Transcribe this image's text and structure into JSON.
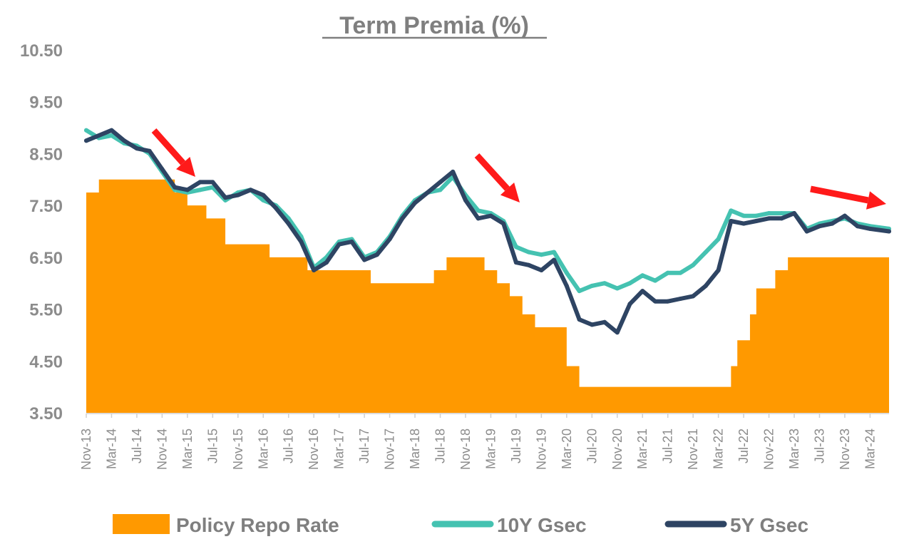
{
  "chart_data": {
    "type": "area+line",
    "title": "Term Premia (%)",
    "xlabel": "",
    "ylabel": "",
    "ylim": [
      3.5,
      10.5
    ],
    "y_ticks": [
      "3.50",
      "4.50",
      "5.50",
      "6.50",
      "7.50",
      "8.50",
      "9.50",
      "10.50"
    ],
    "x_range": [
      "2013-11",
      "2024-06"
    ],
    "x_ticks": [
      "Nov-13",
      "Mar-14",
      "Jul-14",
      "Nov-14",
      "Mar-15",
      "Jul-15",
      "Nov-15",
      "Mar-16",
      "Jul-16",
      "Nov-16",
      "Mar-17",
      "Jul-17",
      "Nov-17",
      "Mar-18",
      "Jul-18",
      "Nov-18",
      "Mar-19",
      "Jul-19",
      "Nov-19",
      "Mar-20",
      "Jul-20",
      "Nov-20",
      "Mar-21",
      "Jul-21",
      "Nov-21",
      "Mar-22",
      "Jul-22",
      "Nov-22",
      "Mar-23",
      "Jul-23",
      "Nov-23",
      "Mar-24"
    ],
    "grid": false,
    "legend_position": "bottom",
    "colors": {
      "repo": "#ff9900",
      "gsec10": "#45c2b1",
      "gsec5": "#2e4463",
      "arrow": "#ff1a1a",
      "text": "#8c8c8c"
    },
    "series": [
      {
        "name": "Policy Repo Rate",
        "kind": "step-area",
        "points": [
          [
            "2013-11",
            7.75
          ],
          [
            "2014-01",
            8.0
          ],
          [
            "2015-01",
            7.75
          ],
          [
            "2015-03",
            7.5
          ],
          [
            "2015-06",
            7.25
          ],
          [
            "2015-09",
            6.75
          ],
          [
            "2016-04",
            6.5
          ],
          [
            "2016-10",
            6.25
          ],
          [
            "2017-08",
            6.0
          ],
          [
            "2018-06",
            6.25
          ],
          [
            "2018-08",
            6.5
          ],
          [
            "2019-02",
            6.25
          ],
          [
            "2019-04",
            6.0
          ],
          [
            "2019-06",
            5.75
          ],
          [
            "2019-08",
            5.4
          ],
          [
            "2019-10",
            5.15
          ],
          [
            "2020-03",
            4.4
          ],
          [
            "2020-05",
            4.0
          ],
          [
            "2022-05",
            4.4
          ],
          [
            "2022-06",
            4.9
          ],
          [
            "2022-08",
            5.4
          ],
          [
            "2022-09",
            5.9
          ],
          [
            "2022-12",
            6.25
          ],
          [
            "2023-02",
            6.5
          ],
          [
            "2024-06",
            6.5
          ]
        ]
      },
      {
        "name": "10Y Gsec",
        "kind": "line",
        "points": [
          [
            "2013-11",
            8.95
          ],
          [
            "2014-01",
            8.8
          ],
          [
            "2014-03",
            8.85
          ],
          [
            "2014-05",
            8.7
          ],
          [
            "2014-07",
            8.65
          ],
          [
            "2014-09",
            8.5
          ],
          [
            "2014-11",
            8.15
          ],
          [
            "2015-01",
            7.8
          ],
          [
            "2015-03",
            7.75
          ],
          [
            "2015-05",
            7.8
          ],
          [
            "2015-07",
            7.85
          ],
          [
            "2015-09",
            7.6
          ],
          [
            "2015-11",
            7.75
          ],
          [
            "2016-01",
            7.8
          ],
          [
            "2016-03",
            7.6
          ],
          [
            "2016-05",
            7.5
          ],
          [
            "2016-07",
            7.25
          ],
          [
            "2016-09",
            6.9
          ],
          [
            "2016-11",
            6.3
          ],
          [
            "2017-01",
            6.5
          ],
          [
            "2017-03",
            6.8
          ],
          [
            "2017-05",
            6.85
          ],
          [
            "2017-07",
            6.5
          ],
          [
            "2017-09",
            6.6
          ],
          [
            "2017-11",
            6.9
          ],
          [
            "2018-01",
            7.3
          ],
          [
            "2018-03",
            7.6
          ],
          [
            "2018-05",
            7.75
          ],
          [
            "2018-07",
            7.8
          ],
          [
            "2018-09",
            8.05
          ],
          [
            "2018-11",
            7.7
          ],
          [
            "2019-01",
            7.4
          ],
          [
            "2019-03",
            7.35
          ],
          [
            "2019-05",
            7.2
          ],
          [
            "2019-07",
            6.7
          ],
          [
            "2019-09",
            6.6
          ],
          [
            "2019-11",
            6.55
          ],
          [
            "2020-01",
            6.6
          ],
          [
            "2020-03",
            6.2
          ],
          [
            "2020-05",
            5.85
          ],
          [
            "2020-07",
            5.95
          ],
          [
            "2020-09",
            6.0
          ],
          [
            "2020-11",
            5.9
          ],
          [
            "2021-01",
            6.0
          ],
          [
            "2021-03",
            6.15
          ],
          [
            "2021-05",
            6.05
          ],
          [
            "2021-07",
            6.2
          ],
          [
            "2021-09",
            6.2
          ],
          [
            "2021-11",
            6.35
          ],
          [
            "2022-01",
            6.6
          ],
          [
            "2022-03",
            6.85
          ],
          [
            "2022-05",
            7.4
          ],
          [
            "2022-07",
            7.3
          ],
          [
            "2022-09",
            7.3
          ],
          [
            "2022-11",
            7.35
          ],
          [
            "2023-01",
            7.35
          ],
          [
            "2023-03",
            7.35
          ],
          [
            "2023-05",
            7.05
          ],
          [
            "2023-07",
            7.15
          ],
          [
            "2023-09",
            7.2
          ],
          [
            "2023-11",
            7.25
          ],
          [
            "2024-01",
            7.15
          ],
          [
            "2024-03",
            7.1
          ],
          [
            "2024-06",
            7.05
          ]
        ]
      },
      {
        "name": "5Y Gsec",
        "kind": "line",
        "points": [
          [
            "2013-11",
            8.75
          ],
          [
            "2014-01",
            8.85
          ],
          [
            "2014-03",
            8.95
          ],
          [
            "2014-05",
            8.75
          ],
          [
            "2014-07",
            8.6
          ],
          [
            "2014-09",
            8.55
          ],
          [
            "2014-11",
            8.2
          ],
          [
            "2015-01",
            7.85
          ],
          [
            "2015-03",
            7.8
          ],
          [
            "2015-05",
            7.95
          ],
          [
            "2015-07",
            7.95
          ],
          [
            "2015-09",
            7.65
          ],
          [
            "2015-11",
            7.7
          ],
          [
            "2016-01",
            7.8
          ],
          [
            "2016-03",
            7.7
          ],
          [
            "2016-05",
            7.45
          ],
          [
            "2016-07",
            7.15
          ],
          [
            "2016-09",
            6.8
          ],
          [
            "2016-11",
            6.25
          ],
          [
            "2017-01",
            6.4
          ],
          [
            "2017-03",
            6.75
          ],
          [
            "2017-05",
            6.8
          ],
          [
            "2017-07",
            6.45
          ],
          [
            "2017-09",
            6.55
          ],
          [
            "2017-11",
            6.85
          ],
          [
            "2018-01",
            7.25
          ],
          [
            "2018-03",
            7.55
          ],
          [
            "2018-05",
            7.75
          ],
          [
            "2018-07",
            7.95
          ],
          [
            "2018-09",
            8.15
          ],
          [
            "2018-11",
            7.6
          ],
          [
            "2019-01",
            7.25
          ],
          [
            "2019-03",
            7.3
          ],
          [
            "2019-05",
            7.15
          ],
          [
            "2019-07",
            6.4
          ],
          [
            "2019-09",
            6.35
          ],
          [
            "2019-11",
            6.25
          ],
          [
            "2020-01",
            6.45
          ],
          [
            "2020-03",
            5.95
          ],
          [
            "2020-05",
            5.3
          ],
          [
            "2020-07",
            5.2
          ],
          [
            "2020-09",
            5.25
          ],
          [
            "2020-11",
            5.05
          ],
          [
            "2021-01",
            5.6
          ],
          [
            "2021-03",
            5.85
          ],
          [
            "2021-05",
            5.65
          ],
          [
            "2021-07",
            5.65
          ],
          [
            "2021-09",
            5.7
          ],
          [
            "2021-11",
            5.75
          ],
          [
            "2022-01",
            5.95
          ],
          [
            "2022-03",
            6.25
          ],
          [
            "2022-05",
            7.2
          ],
          [
            "2022-07",
            7.15
          ],
          [
            "2022-09",
            7.2
          ],
          [
            "2022-11",
            7.25
          ],
          [
            "2023-01",
            7.25
          ],
          [
            "2023-03",
            7.35
          ],
          [
            "2023-05",
            7.0
          ],
          [
            "2023-07",
            7.1
          ],
          [
            "2023-09",
            7.15
          ],
          [
            "2023-11",
            7.3
          ],
          [
            "2024-01",
            7.1
          ],
          [
            "2024-03",
            7.05
          ],
          [
            "2024-06",
            7.0
          ]
        ]
      }
    ]
  }
}
